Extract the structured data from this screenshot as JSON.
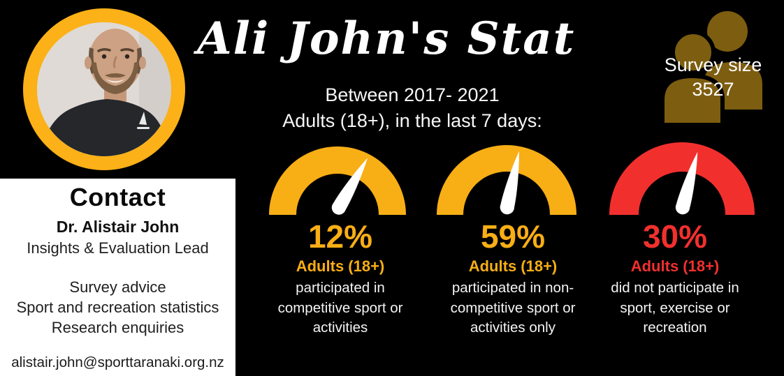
{
  "colors": {
    "background": "#000000",
    "accent_yellow": "#F8AE15",
    "accent_red": "#F1302E",
    "icon_gold": "#7D5D10",
    "ring_yellow": "#FBB117",
    "panel_white": "#FFFFFF"
  },
  "header": {
    "title": "Ali John's Stat",
    "subtitle_line1": "Between 2017- 2021",
    "subtitle_line2": "Adults (18+), in the last 7 days:"
  },
  "survey_badge": {
    "icon": "people-icon",
    "line1": "Survey size",
    "line2": "3527"
  },
  "contact_panel": {
    "heading": "Contact",
    "name": "Dr. Alistair John",
    "role": "Insights & Evaluation Lead",
    "services": [
      "Survey advice",
      "Sport and recreation statistics",
      "Research enquiries"
    ],
    "email": "alistair.john@sporttaranaki.org.nz"
  },
  "gauges": [
    {
      "value": "12%",
      "group": "Adults (18+)",
      "description": "participated in\ncompetitive sport or\nactivities",
      "color": "#F8AE15",
      "needle_angle_deg": 30
    },
    {
      "value": "59%",
      "group": "Adults (18+)",
      "description": "participated in non-\ncompetitive sport or\nactivities only",
      "color": "#F8AE15",
      "needle_angle_deg": 12
    },
    {
      "value": "30%",
      "group": "Adults (18+)",
      "description": "did not participate in\nsport, exercise or\nrecreation",
      "color": "#F1302E",
      "needle_angle_deg": 15
    }
  ],
  "chart_data": {
    "type": "gauge",
    "title": "Ali John's Stat",
    "subtitle": "Between 2017- 2021, Adults (18+), in the last 7 days",
    "survey_size": 3527,
    "unit": "percent",
    "range": [
      0,
      100
    ],
    "series": [
      {
        "label": "participated in competitive sport or activities",
        "value": 12,
        "color": "#F8AE15"
      },
      {
        "label": "participated in non-competitive sport or activities only",
        "value": 59,
        "color": "#F8AE15"
      },
      {
        "label": "did not participate in sport, exercise or recreation",
        "value": 30,
        "color": "#F1302E"
      }
    ]
  }
}
